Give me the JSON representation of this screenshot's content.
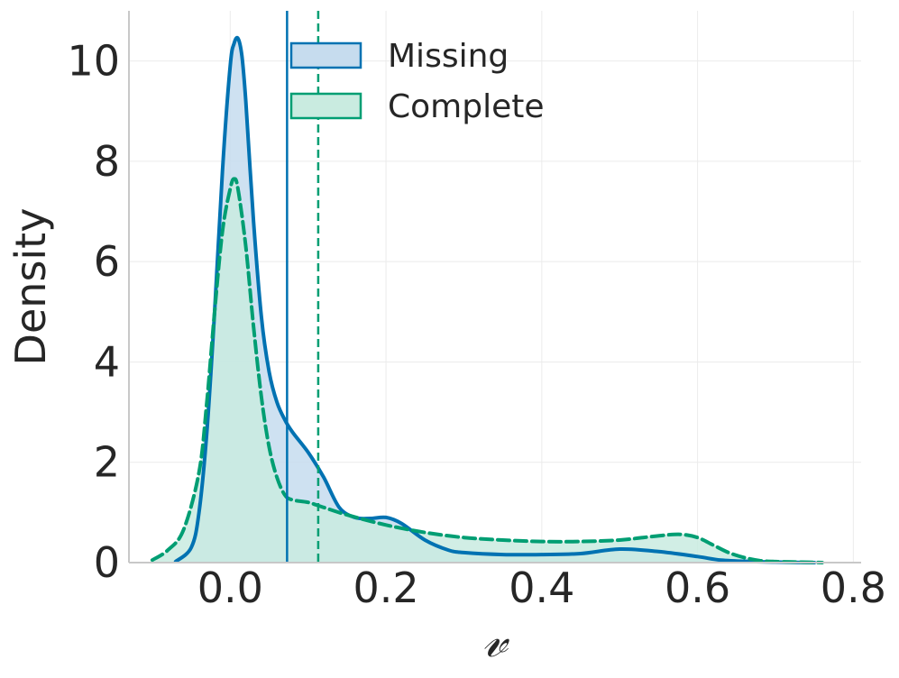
{
  "chart_data": {
    "type": "area",
    "xlabel": "𝓋",
    "ylabel": "Density",
    "xlim": [
      -0.13,
      0.81
    ],
    "ylim": [
      0,
      11
    ],
    "xticks": [
      0.0,
      0.2,
      0.4,
      0.6,
      0.8
    ],
    "xtick_labels": [
      "0.0",
      "0.2",
      "0.4",
      "0.6",
      "0.8"
    ],
    "yticks": [
      0,
      2,
      4,
      6,
      8,
      10
    ],
    "ytick_labels": [
      "0",
      "2",
      "4",
      "6",
      "8",
      "10"
    ],
    "grid": true,
    "legend_position": "top-center",
    "series": [
      {
        "name": "Missing",
        "color": "#0072b2",
        "fill": "#c6dcee",
        "line_style": "solid",
        "mean_line": 0.073,
        "x": [
          -0.07,
          -0.05,
          -0.04,
          -0.03,
          -0.02,
          -0.01,
          0.0,
          0.005,
          0.01,
          0.015,
          0.02,
          0.03,
          0.04,
          0.05,
          0.06,
          0.07,
          0.08,
          0.1,
          0.12,
          0.14,
          0.16,
          0.18,
          0.2,
          0.22,
          0.25,
          0.28,
          0.3,
          0.35,
          0.4,
          0.45,
          0.5,
          0.55,
          0.6,
          0.63,
          0.67,
          0.7,
          0.75
        ],
        "y": [
          0.02,
          0.3,
          1.0,
          2.6,
          5.0,
          7.8,
          9.9,
          10.35,
          10.45,
          10.1,
          9.2,
          6.8,
          4.9,
          3.8,
          3.2,
          2.85,
          2.6,
          2.2,
          1.7,
          1.1,
          0.9,
          0.88,
          0.9,
          0.78,
          0.45,
          0.25,
          0.2,
          0.16,
          0.16,
          0.18,
          0.27,
          0.22,
          0.12,
          0.05,
          0.02,
          0.01,
          0.0
        ]
      },
      {
        "name": "Complete",
        "color": "#009e73",
        "fill": "#c9ebe0",
        "line_style": "dashed",
        "mean_line": 0.113,
        "x": [
          -0.1,
          -0.08,
          -0.06,
          -0.04,
          -0.03,
          -0.02,
          -0.01,
          0.0,
          0.005,
          0.01,
          0.02,
          0.03,
          0.04,
          0.05,
          0.06,
          0.07,
          0.08,
          0.1,
          0.12,
          0.15,
          0.2,
          0.25,
          0.3,
          0.35,
          0.4,
          0.45,
          0.5,
          0.53,
          0.56,
          0.58,
          0.6,
          0.62,
          0.64,
          0.66,
          0.68,
          0.7,
          0.73,
          0.76
        ],
        "y": [
          0.05,
          0.25,
          0.65,
          1.8,
          3.2,
          5.0,
          6.6,
          7.45,
          7.65,
          7.45,
          6.3,
          4.7,
          3.3,
          2.3,
          1.7,
          1.35,
          1.25,
          1.2,
          1.1,
          0.95,
          0.75,
          0.6,
          0.5,
          0.45,
          0.42,
          0.42,
          0.45,
          0.5,
          0.55,
          0.56,
          0.5,
          0.35,
          0.2,
          0.1,
          0.04,
          0.02,
          0.01,
          0.0
        ]
      }
    ]
  }
}
